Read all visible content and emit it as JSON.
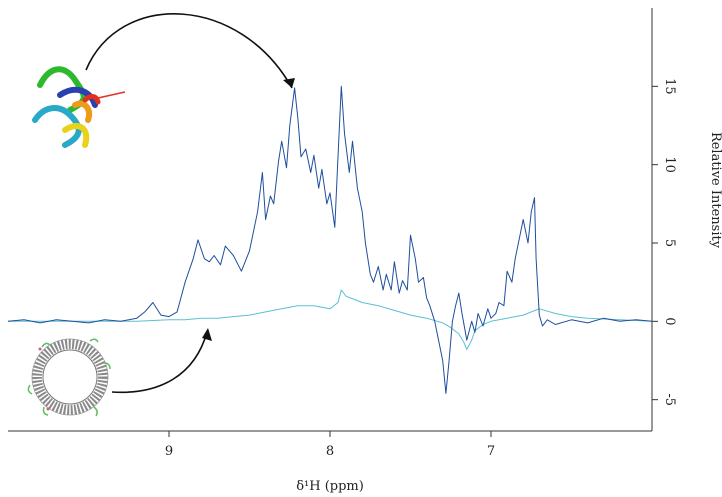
{
  "chart_data": {
    "type": "line",
    "title": "",
    "xlabel": "δ¹H (ppm)",
    "ylabel": "Relative Intensity",
    "xlim": [
      10.0,
      6.0
    ],
    "ylim": [
      -7,
      20
    ],
    "x_ticks": [
      "9",
      "8",
      "7"
    ],
    "y_ticks": [
      "-5",
      "0",
      "5",
      "10",
      "15"
    ],
    "grid": false,
    "legend": "none",
    "series": [
      {
        "color": "#1f4e9c",
        "x": [
          10.0,
          9.9,
          9.8,
          9.7,
          9.6,
          9.5,
          9.4,
          9.3,
          9.2,
          9.15,
          9.1,
          9.05,
          9.0,
          8.95,
          8.9,
          8.85,
          8.82,
          8.78,
          8.75,
          8.72,
          8.68,
          8.65,
          8.6,
          8.55,
          8.5,
          8.45,
          8.42,
          8.4,
          8.37,
          8.35,
          8.32,
          8.3,
          8.27,
          8.25,
          8.22,
          8.2,
          8.18,
          8.15,
          8.12,
          8.1,
          8.07,
          8.05,
          8.02,
          8.0,
          7.97,
          7.95,
          7.93,
          7.91,
          7.88,
          7.86,
          7.83,
          7.8,
          7.78,
          7.75,
          7.73,
          7.7,
          7.67,
          7.65,
          7.62,
          7.6,
          7.57,
          7.55,
          7.52,
          7.5,
          7.47,
          7.45,
          7.42,
          7.4,
          7.38,
          7.35,
          7.33,
          7.3,
          7.28,
          7.26,
          7.24,
          7.22,
          7.2,
          7.18,
          7.15,
          7.12,
          7.1,
          7.08,
          7.05,
          7.02,
          7.0,
          6.97,
          6.95,
          6.92,
          6.9,
          6.87,
          6.85,
          6.82,
          6.8,
          6.77,
          6.75,
          6.73,
          6.72,
          6.7,
          6.68,
          6.65,
          6.6,
          6.5,
          6.4,
          6.3,
          6.2,
          6.1,
          6.0
        ],
        "y": [
          0.0,
          0.1,
          -0.1,
          0.1,
          0.0,
          -0.1,
          0.1,
          0.0,
          0.2,
          0.6,
          1.2,
          0.4,
          0.3,
          0.6,
          2.5,
          4.0,
          5.2,
          4.0,
          3.8,
          4.2,
          3.6,
          4.8,
          4.2,
          3.2,
          4.5,
          7.0,
          9.5,
          6.5,
          8.0,
          7.5,
          10.2,
          11.5,
          9.8,
          12.5,
          14.9,
          13.0,
          10.5,
          11.0,
          9.5,
          10.6,
          8.5,
          9.7,
          7.5,
          8.2,
          6.0,
          10.5,
          15.0,
          12.0,
          9.5,
          11.5,
          8.5,
          7.0,
          5.0,
          3.0,
          2.5,
          3.5,
          2.0,
          3.0,
          2.0,
          3.8,
          1.8,
          2.6,
          2.0,
          5.5,
          4.0,
          2.5,
          2.8,
          1.5,
          1.0,
          0.0,
          -1.0,
          -2.5,
          -4.6,
          -2.5,
          0.0,
          1.0,
          1.8,
          0.5,
          -1.2,
          0.0,
          -0.7,
          0.5,
          -0.3,
          0.8,
          0.2,
          0.5,
          1.2,
          1.0,
          3.2,
          2.5,
          4.0,
          5.5,
          6.5,
          5.0,
          7.0,
          7.9,
          4.0,
          0.4,
          -0.3,
          0.1,
          -0.2,
          0.1,
          -0.1,
          0.2,
          0.0,
          0.1,
          0.0
        ]
      },
      {
        "color": "#5bc0d0",
        "x": [
          10.0,
          9.8,
          9.6,
          9.4,
          9.2,
          9.0,
          8.9,
          8.8,
          8.7,
          8.6,
          8.5,
          8.4,
          8.3,
          8.2,
          8.1,
          8.0,
          7.95,
          7.93,
          7.9,
          7.85,
          7.8,
          7.7,
          7.6,
          7.5,
          7.4,
          7.3,
          7.25,
          7.2,
          7.17,
          7.15,
          7.12,
          7.1,
          7.05,
          7.0,
          6.95,
          6.9,
          6.85,
          6.8,
          6.75,
          6.7,
          6.6,
          6.5,
          6.4,
          6.2,
          6.0
        ],
        "y": [
          0.0,
          0.0,
          0.0,
          0.0,
          0.0,
          0.1,
          0.1,
          0.2,
          0.2,
          0.3,
          0.4,
          0.6,
          0.8,
          1.0,
          1.0,
          0.8,
          1.2,
          2.0,
          1.6,
          1.4,
          1.2,
          1.0,
          0.7,
          0.4,
          0.2,
          -0.1,
          -0.4,
          -0.8,
          -1.3,
          -1.8,
          -1.2,
          -0.6,
          -0.2,
          0.0,
          0.1,
          0.2,
          0.3,
          0.4,
          0.6,
          0.8,
          0.5,
          0.3,
          0.2,
          0.1,
          0.0
        ]
      }
    ]
  }
}
